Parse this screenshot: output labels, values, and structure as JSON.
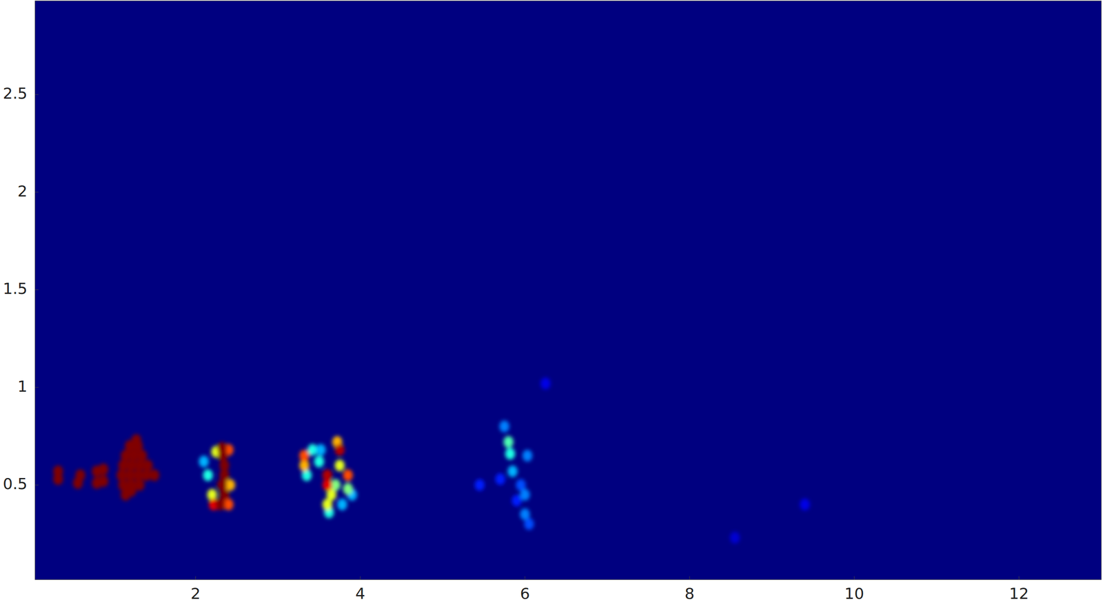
{
  "chart_data": {
    "type": "heatmap",
    "xlim": [
      0.05,
      13
    ],
    "ylim": [
      0.015,
      2.98
    ],
    "xticks": [
      2,
      4,
      6,
      8,
      10,
      12
    ],
    "yticks": [
      0.5,
      1,
      1.5,
      2,
      2.5
    ],
    "clim": [
      0,
      1
    ],
    "cell_width": 0.1,
    "cell_height": 0.05,
    "cells": [
      {
        "x": 0.33,
        "y": 0.53,
        "value": 1
      },
      {
        "x": 0.33,
        "y": 0.57,
        "value": 1
      },
      {
        "x": 0.57,
        "y": 0.51,
        "value": 1
      },
      {
        "x": 0.6,
        "y": 0.55,
        "value": 1
      },
      {
        "x": 0.8,
        "y": 0.51,
        "value": 1
      },
      {
        "x": 0.88,
        "y": 0.52,
        "value": 1
      },
      {
        "x": 0.8,
        "y": 0.57,
        "value": 1
      },
      {
        "x": 0.88,
        "y": 0.58,
        "value": 1
      },
      {
        "x": 1.15,
        "y": 0.45,
        "value": 1
      },
      {
        "x": 1.22,
        "y": 0.47,
        "value": 1
      },
      {
        "x": 1.12,
        "y": 0.5,
        "value": 1
      },
      {
        "x": 1.22,
        "y": 0.5,
        "value": 1
      },
      {
        "x": 1.32,
        "y": 0.5,
        "value": 1
      },
      {
        "x": 1.1,
        "y": 0.55,
        "value": 1
      },
      {
        "x": 1.2,
        "y": 0.55,
        "value": 1
      },
      {
        "x": 1.3,
        "y": 0.55,
        "value": 1
      },
      {
        "x": 1.4,
        "y": 0.55,
        "value": 1
      },
      {
        "x": 1.5,
        "y": 0.55,
        "value": 1
      },
      {
        "x": 1.12,
        "y": 0.6,
        "value": 1
      },
      {
        "x": 1.22,
        "y": 0.6,
        "value": 1
      },
      {
        "x": 1.32,
        "y": 0.6,
        "value": 1
      },
      {
        "x": 1.42,
        "y": 0.6,
        "value": 1
      },
      {
        "x": 1.15,
        "y": 0.65,
        "value": 1
      },
      {
        "x": 1.25,
        "y": 0.65,
        "value": 1
      },
      {
        "x": 1.35,
        "y": 0.65,
        "value": 1
      },
      {
        "x": 1.2,
        "y": 0.7,
        "value": 1
      },
      {
        "x": 1.3,
        "y": 0.7,
        "value": 1
      },
      {
        "x": 1.28,
        "y": 0.73,
        "value": 1
      },
      {
        "x": 2.1,
        "y": 0.62,
        "value": 0.3
      },
      {
        "x": 2.15,
        "y": 0.55,
        "value": 0.4
      },
      {
        "x": 2.2,
        "y": 0.45,
        "value": 0.6
      },
      {
        "x": 2.25,
        "y": 0.67,
        "value": 0.6
      },
      {
        "x": 2.42,
        "y": 0.5,
        "value": 0.7
      },
      {
        "x": 2.4,
        "y": 0.68,
        "value": 0.8
      },
      {
        "x": 2.22,
        "y": 0.4,
        "value": 0.9
      },
      {
        "x": 2.4,
        "y": 0.4,
        "value": 0.8
      },
      {
        "x": 2.3,
        "y": 0.4,
        "value": 1
      },
      {
        "x": 2.35,
        "y": 0.45,
        "value": 1
      },
      {
        "x": 2.32,
        "y": 0.5,
        "value": 1
      },
      {
        "x": 2.35,
        "y": 0.55,
        "value": 1
      },
      {
        "x": 2.35,
        "y": 0.6,
        "value": 1
      },
      {
        "x": 2.33,
        "y": 0.65,
        "value": 1
      },
      {
        "x": 2.32,
        "y": 0.69,
        "value": 1
      },
      {
        "x": 3.35,
        "y": 0.55,
        "value": 0.4
      },
      {
        "x": 3.42,
        "y": 0.68,
        "value": 0.4
      },
      {
        "x": 3.32,
        "y": 0.6,
        "value": 0.7
      },
      {
        "x": 3.32,
        "y": 0.65,
        "value": 0.8
      },
      {
        "x": 3.52,
        "y": 0.68,
        "value": 0.3
      },
      {
        "x": 3.5,
        "y": 0.62,
        "value": 0.4
      },
      {
        "x": 3.78,
        "y": 0.4,
        "value": 0.3
      },
      {
        "x": 3.9,
        "y": 0.45,
        "value": 0.3
      },
      {
        "x": 3.62,
        "y": 0.36,
        "value": 0.4
      },
      {
        "x": 3.7,
        "y": 0.5,
        "value": 0.5
      },
      {
        "x": 3.85,
        "y": 0.48,
        "value": 0.5
      },
      {
        "x": 3.65,
        "y": 0.45,
        "value": 0.6
      },
      {
        "x": 3.6,
        "y": 0.4,
        "value": 0.6
      },
      {
        "x": 3.75,
        "y": 0.6,
        "value": 0.6
      },
      {
        "x": 3.72,
        "y": 0.72,
        "value": 0.7
      },
      {
        "x": 3.85,
        "y": 0.55,
        "value": 0.8
      },
      {
        "x": 3.6,
        "y": 0.5,
        "value": 0.9
      },
      {
        "x": 3.6,
        "y": 0.55,
        "value": 0.95
      },
      {
        "x": 3.75,
        "y": 0.68,
        "value": 0.95
      },
      {
        "x": 5.7,
        "y": 0.53,
        "value": 0.15
      },
      {
        "x": 5.9,
        "y": 0.42,
        "value": 0.15
      },
      {
        "x": 5.95,
        "y": 0.5,
        "value": 0.2
      },
      {
        "x": 5.75,
        "y": 0.8,
        "value": 0.25
      },
      {
        "x": 6.0,
        "y": 0.45,
        "value": 0.25
      },
      {
        "x": 6.0,
        "y": 0.35,
        "value": 0.25
      },
      {
        "x": 6.03,
        "y": 0.65,
        "value": 0.25
      },
      {
        "x": 5.85,
        "y": 0.57,
        "value": 0.3
      },
      {
        "x": 5.82,
        "y": 0.66,
        "value": 0.4
      },
      {
        "x": 5.8,
        "y": 0.72,
        "value": 0.45
      },
      {
        "x": 5.45,
        "y": 0.5,
        "value": 0.15
      },
      {
        "x": 6.25,
        "y": 1.02,
        "value": 0.1
      },
      {
        "x": 8.55,
        "y": 0.23,
        "value": 0.08
      },
      {
        "x": 9.4,
        "y": 0.4,
        "value": 0.1
      },
      {
        "x": 6.05,
        "y": 0.3,
        "value": 0.2
      }
    ]
  }
}
